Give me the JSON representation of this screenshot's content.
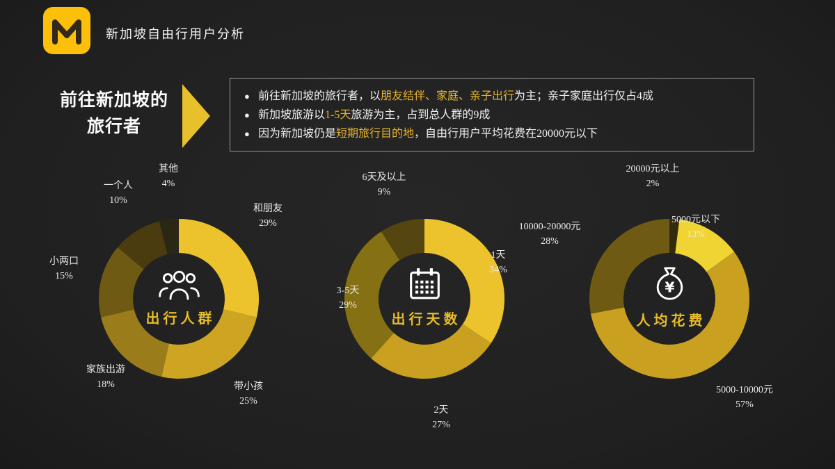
{
  "colors": {
    "background": "#202020",
    "accent_yellow": "#ecc32d",
    "highlight_text": "#e7b32b",
    "logo_yellow": "#fcbf0a",
    "label_text": "#eaeaea"
  },
  "header": {
    "title": "新加坡自由行用户分析"
  },
  "intro": {
    "heading": [
      "前往新加坡的",
      "旅行者"
    ],
    "bullets": [
      {
        "pre": "前往新加坡的旅行者，以",
        "highlight": "朋友结伴、家庭、亲子出行",
        "post": "为主；亲子家庭出行仅占4成"
      },
      {
        "pre": "新加坡旅游以",
        "highlight": "1-5天",
        "post": "旅游为主，占到总人群的9成"
      },
      {
        "pre": "因为新加坡仍是",
        "highlight": "短期旅行目的地",
        "post": "，自由行用户平均花费在20000元以下"
      }
    ]
  },
  "chart_data": [
    {
      "type": "donut",
      "title": "出行人群",
      "icon": "people-group-icon",
      "legend_position": "around",
      "segments": [
        {
          "label": "和朋友",
          "value": 29,
          "pct": "29%",
          "color": "#ecc32d"
        },
        {
          "label": "带小孩",
          "value": 25,
          "pct": "25%",
          "color": "#cda522"
        },
        {
          "label": "家族出游",
          "value": 18,
          "pct": "18%",
          "color": "#9a7c1b"
        },
        {
          "label": "小两口",
          "value": 15,
          "pct": "15%",
          "color": "#6f5a14"
        },
        {
          "label": "一个人",
          "value": 10,
          "pct": "10%",
          "color": "#4a3c0e"
        },
        {
          "label": "其他",
          "value": 4,
          "pct": "4%",
          "color": "#2b2715"
        }
      ]
    },
    {
      "type": "donut",
      "title": "出行天数",
      "icon": "calendar-icon",
      "legend_position": "around",
      "segments": [
        {
          "label": "1天",
          "value": 34,
          "pct": "34%",
          "color": "#ecc32d"
        },
        {
          "label": "2天",
          "value": 27,
          "pct": "27%",
          "color": "#c9a01f"
        },
        {
          "label": "3-5天",
          "value": 29,
          "pct": "29%",
          "color": "#857013"
        },
        {
          "label": "6天及以上",
          "value": 9,
          "pct": "9%",
          "color": "#554510"
        }
      ]
    },
    {
      "type": "donut",
      "title": "人均花费",
      "icon": "money-bag-icon",
      "legend_position": "around",
      "segments": [
        {
          "label": "20000元以上",
          "value": 2,
          "pct": "2%",
          "color": "#332b0d"
        },
        {
          "label": "5000元以下",
          "value": 13,
          "pct": "13%",
          "color": "#f0d434"
        },
        {
          "label": "5000-10000元",
          "value": 57,
          "pct": "57%",
          "color": "#c9a01f"
        },
        {
          "label": "10000-20000元",
          "value": 28,
          "pct": "28%",
          "color": "#6f5a14"
        }
      ]
    }
  ]
}
